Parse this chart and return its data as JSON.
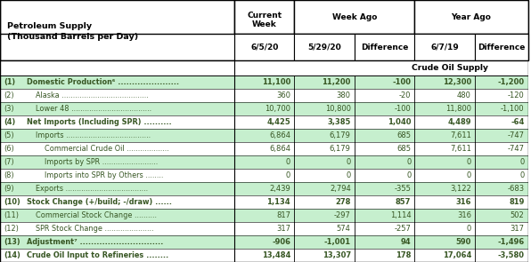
{
  "title_line1": "Petroleum Supply",
  "title_line2": "(Thousand Barrels per Day)",
  "section_header": "Crude Oil Supply",
  "col_headers_1": [
    "Current\nWeek",
    "Week Ago",
    "Year Ago"
  ],
  "col_headers_2": [
    "6/5/20",
    "5/29/20",
    "Difference",
    "6/7/19",
    "Difference"
  ],
  "rows": [
    {
      "num": "(1)",
      "label": "Domestic Production⁶ ......................",
      "bold": true,
      "indent": 0,
      "vals": [
        "11,100",
        "11,200",
        "-100",
        "12,300",
        "-1,200"
      ]
    },
    {
      "num": "(2)",
      "label": "Alaska .......................................",
      "bold": false,
      "indent": 1,
      "vals": [
        "360",
        "380",
        "-20",
        "480",
        "-120"
      ]
    },
    {
      "num": "(3)",
      "label": "Lower 48 ....................................",
      "bold": false,
      "indent": 1,
      "vals": [
        "10,700",
        "10,800",
        "-100",
        "11,800",
        "-1,100"
      ]
    },
    {
      "num": "(4)",
      "label": "Net Imports (Including SPR) ..........",
      "bold": true,
      "indent": 0,
      "vals": [
        "4,425",
        "3,385",
        "1,040",
        "4,489",
        "-64"
      ]
    },
    {
      "num": "(5)",
      "label": "Imports ......................................",
      "bold": false,
      "indent": 1,
      "vals": [
        "6,864",
        "6,179",
        "685",
        "7,611",
        "-747"
      ]
    },
    {
      "num": "(6)",
      "label": "Commercial Crude Oil ...................",
      "bold": false,
      "indent": 2,
      "vals": [
        "6,864",
        "6,179",
        "685",
        "7,611",
        "-747"
      ]
    },
    {
      "num": "(7)",
      "label": "Imports by SPR .........................",
      "bold": false,
      "indent": 2,
      "vals": [
        "0",
        "0",
        "0",
        "0",
        "0"
      ]
    },
    {
      "num": "(8)",
      "label": "Imports into SPR by Others ........",
      "bold": false,
      "indent": 2,
      "vals": [
        "0",
        "0",
        "0",
        "0",
        "0"
      ]
    },
    {
      "num": "(9)",
      "label": "Exports .....................................",
      "bold": false,
      "indent": 1,
      "vals": [
        "2,439",
        "2,794",
        "-355",
        "3,122",
        "-683"
      ]
    },
    {
      "num": "(10)",
      "label": "Stock Change (+/build; -/draw) ......",
      "bold": true,
      "indent": 0,
      "vals": [
        "1,134",
        "278",
        "857",
        "316",
        "819"
      ]
    },
    {
      "num": "(11)",
      "label": "Commercial Stock Change ..........",
      "bold": false,
      "indent": 1,
      "vals": [
        "817",
        "-297",
        "1,114",
        "316",
        "502"
      ]
    },
    {
      "num": "(12)",
      "label": "SPR Stock Change ......................",
      "bold": false,
      "indent": 1,
      "vals": [
        "317",
        "574",
        "-257",
        "0",
        "317"
      ]
    },
    {
      "num": "(13)",
      "label": "Adjustment⁷ ..............................",
      "bold": true,
      "indent": 0,
      "vals": [
        "-906",
        "-1,001",
        "94",
        "590",
        "-1,496"
      ]
    },
    {
      "num": "(14)",
      "label": "Crude Oil Input to Refineries ........",
      "bold": true,
      "indent": 0,
      "vals": [
        "13,484",
        "13,307",
        "178",
        "17,064",
        "-3,580"
      ]
    }
  ],
  "green_bg": "#c6efce",
  "white_bg": "#ffffff",
  "border_color": "#000000",
  "num_color": "#375623",
  "val_color": "#375623"
}
